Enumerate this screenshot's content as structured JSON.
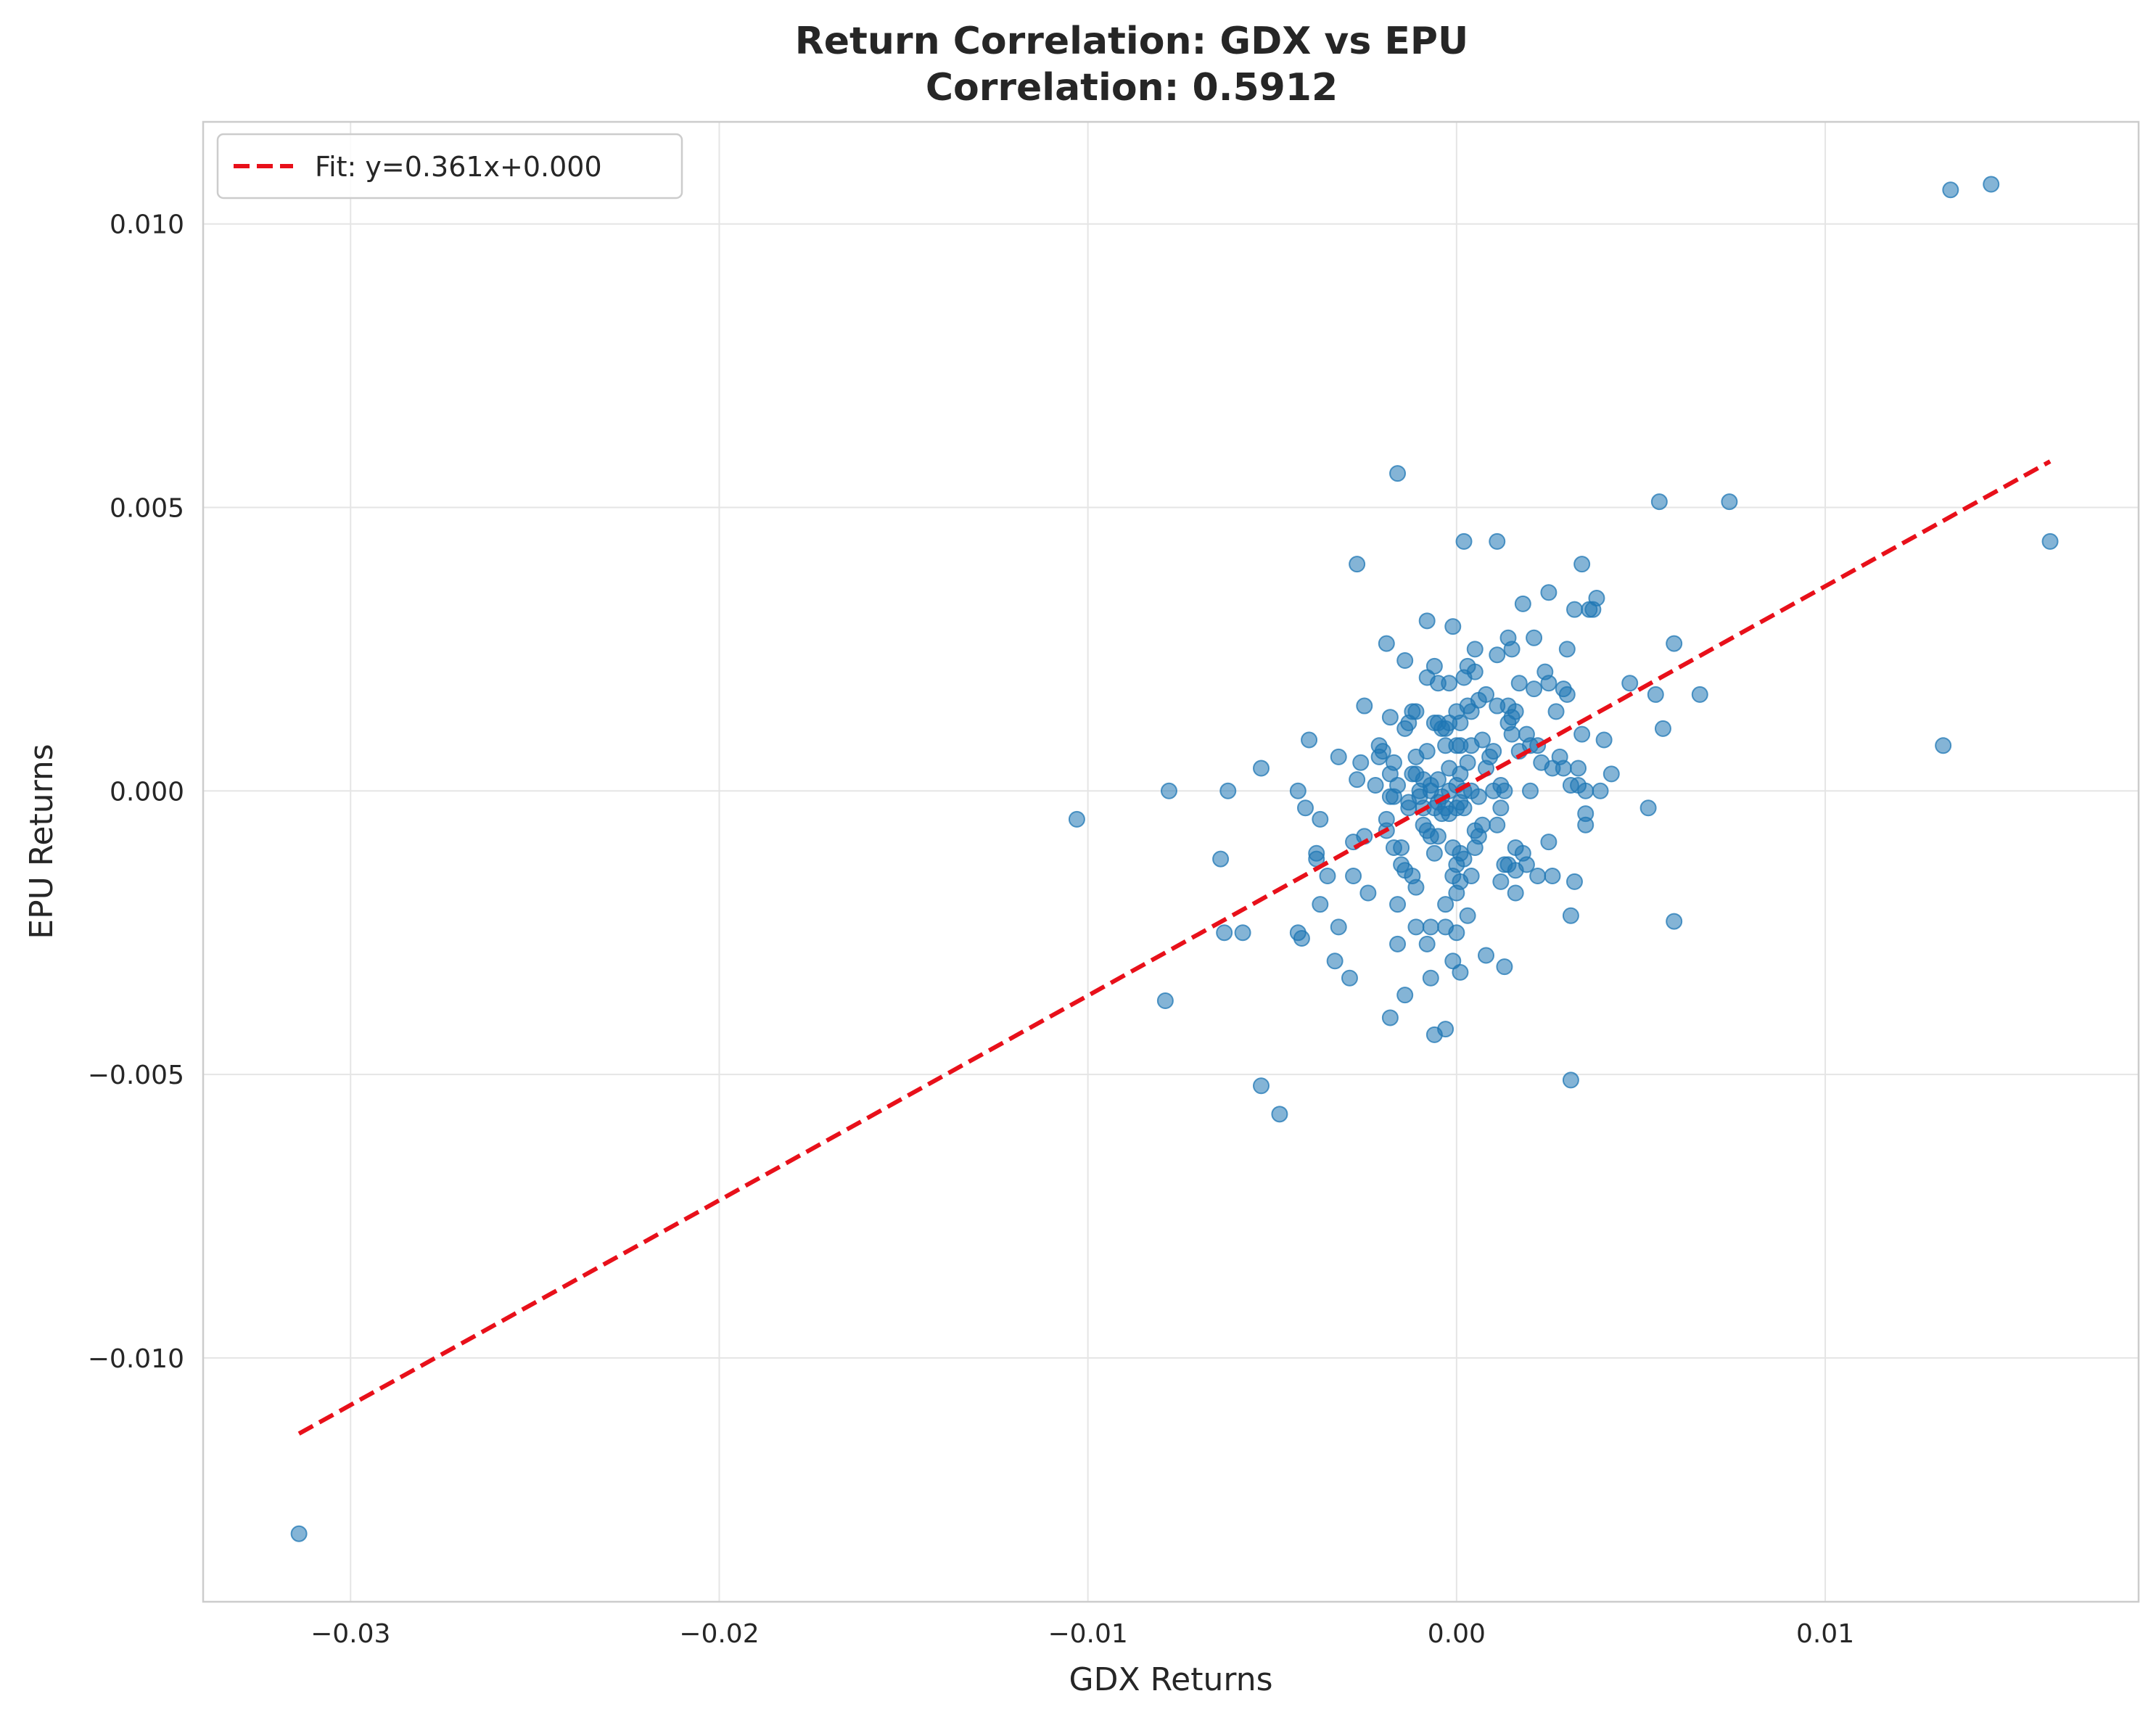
{
  "chart_data": {
    "type": "scatter",
    "title": "Return Correlation: GDX vs EPU",
    "subtitle": "Correlation: 0.5912",
    "xlabel": "GDX Returns",
    "ylabel": "EPU Returns",
    "xlim": [
      -0.034,
      0.0185
    ],
    "ylim": [
      -0.0143,
      0.0118
    ],
    "xticks": [
      -0.03,
      -0.02,
      -0.01,
      0.0,
      0.01
    ],
    "xtick_labels": [
      "−0.03",
      "−0.02",
      "−0.01",
      "0.00",
      "0.01"
    ],
    "yticks": [
      -0.01,
      -0.005,
      0.0,
      0.005,
      0.01
    ],
    "ytick_labels": [
      "−0.010",
      "−0.005",
      "0.000",
      "0.005",
      "0.010"
    ],
    "grid": true,
    "legend_position": "top-left",
    "colors": {
      "points": "#1f77b4",
      "fit": "#e8101a"
    },
    "fit_line": {
      "label": "Fit: y=0.361x+0.000",
      "slope": 0.361,
      "intercept": 0.0,
      "x_range": [
        -0.0314,
        0.0161
      ],
      "style": "dashed"
    },
    "points": [
      [
        -0.0314,
        -0.0131
      ],
      [
        -0.0103,
        -0.0005
      ],
      [
        -0.0078,
        0.0
      ],
      [
        -0.0079,
        -0.0037
      ],
      [
        -0.0064,
        -0.0012
      ],
      [
        -0.0063,
        -0.0025
      ],
      [
        -0.0062,
        0.0
      ],
      [
        -0.0058,
        -0.0025
      ],
      [
        -0.0053,
        0.0004
      ],
      [
        -0.0053,
        -0.0052
      ],
      [
        -0.0048,
        -0.0057
      ],
      [
        -0.0043,
        0.0
      ],
      [
        -0.0043,
        -0.0025
      ],
      [
        -0.0042,
        -0.0026
      ],
      [
        -0.0041,
        -0.0003
      ],
      [
        -0.004,
        0.0009
      ],
      [
        -0.0038,
        -0.0011
      ],
      [
        -0.0038,
        -0.0012
      ],
      [
        -0.0037,
        -0.0005
      ],
      [
        -0.0037,
        -0.002
      ],
      [
        -0.0035,
        -0.0015
      ],
      [
        -0.0033,
        -0.003
      ],
      [
        -0.0032,
        0.0006
      ],
      [
        -0.0032,
        -0.0024
      ],
      [
        -0.0029,
        -0.0033
      ],
      [
        -0.0028,
        -0.0009
      ],
      [
        -0.0028,
        -0.0015
      ],
      [
        -0.0027,
        0.0002
      ],
      [
        -0.0027,
        0.004
      ],
      [
        -0.0026,
        0.0005
      ],
      [
        -0.0025,
        0.0015
      ],
      [
        -0.0025,
        -0.0008
      ],
      [
        -0.0024,
        -0.0018
      ],
      [
        -0.0022,
        0.0001
      ],
      [
        -0.0021,
        0.0006
      ],
      [
        -0.0021,
        0.0008
      ],
      [
        -0.002,
        0.0007
      ],
      [
        -0.0019,
        0.0026
      ],
      [
        -0.0019,
        -0.0005
      ],
      [
        -0.0019,
        -0.0007
      ],
      [
        -0.0018,
        0.0003
      ],
      [
        -0.0018,
        0.0013
      ],
      [
        -0.0018,
        -0.0001
      ],
      [
        -0.0018,
        -0.004
      ],
      [
        -0.0017,
        0.0005
      ],
      [
        -0.0017,
        -0.0001
      ],
      [
        -0.0017,
        -0.001
      ],
      [
        -0.0016,
        0.0056
      ],
      [
        -0.0016,
        0.0001
      ],
      [
        -0.0016,
        -0.002
      ],
      [
        -0.0016,
        -0.0027
      ],
      [
        -0.0015,
        -0.001
      ],
      [
        -0.0015,
        -0.0013
      ],
      [
        -0.0014,
        0.0011
      ],
      [
        -0.0014,
        -0.0014
      ],
      [
        -0.0014,
        0.0023
      ],
      [
        -0.0014,
        -0.0036
      ],
      [
        -0.0013,
        0.0012
      ],
      [
        -0.0013,
        -0.0003
      ],
      [
        -0.0013,
        -0.0002
      ],
      [
        -0.0012,
        0.0014
      ],
      [
        -0.0012,
        0.0003
      ],
      [
        -0.0012,
        -0.0015
      ],
      [
        -0.0011,
        0.0003
      ],
      [
        -0.0011,
        -0.0017
      ],
      [
        -0.0011,
        0.0006
      ],
      [
        -0.0011,
        0.0014
      ],
      [
        -0.0011,
        -0.0024
      ],
      [
        -0.001,
        0.0
      ],
      [
        -0.001,
        -0.0001
      ],
      [
        -0.0009,
        -0.0003
      ],
      [
        -0.0009,
        -0.0006
      ],
      [
        -0.0009,
        0.0002
      ],
      [
        -0.0008,
        0.002
      ],
      [
        -0.0008,
        0.003
      ],
      [
        -0.0008,
        0.0007
      ],
      [
        -0.0008,
        -0.0007
      ],
      [
        -0.0008,
        -0.0027
      ],
      [
        -0.0007,
        0.0001
      ],
      [
        -0.0007,
        0.0
      ],
      [
        -0.0007,
        -0.0008
      ],
      [
        -0.0007,
        -0.0024
      ],
      [
        -0.0007,
        -0.0033
      ],
      [
        -0.0006,
        0.0012
      ],
      [
        -0.0006,
        0.0022
      ],
      [
        -0.0006,
        -0.0003
      ],
      [
        -0.0006,
        -0.0011
      ],
      [
        -0.0006,
        -0.0043
      ],
      [
        -0.0005,
        0.0012
      ],
      [
        -0.0005,
        0.0019
      ],
      [
        -0.0005,
        0.0002
      ],
      [
        -0.0005,
        -0.0002
      ],
      [
        -0.0005,
        -0.0008
      ],
      [
        -0.0004,
        0.0011
      ],
      [
        -0.0004,
        -0.0001
      ],
      [
        -0.0004,
        -0.0004
      ],
      [
        -0.0003,
        0.0008
      ],
      [
        -0.0003,
        0.0011
      ],
      [
        -0.0003,
        -0.0003
      ],
      [
        -0.0003,
        -0.002
      ],
      [
        -0.0003,
        -0.0042
      ],
      [
        -0.0003,
        -0.0024
      ],
      [
        -0.0002,
        0.0019
      ],
      [
        -0.0002,
        0.0012
      ],
      [
        -0.0002,
        0.0004
      ],
      [
        -0.0002,
        0.0
      ],
      [
        -0.0002,
        -0.0004
      ],
      [
        -0.0001,
        0.0029
      ],
      [
        -0.0001,
        -0.0015
      ],
      [
        -0.0001,
        -0.001
      ],
      [
        -0.0001,
        -0.003
      ],
      [
        0.0,
        0.0014
      ],
      [
        0.0,
        0.0008
      ],
      [
        0.0,
        0.0001
      ],
      [
        0.0,
        -0.0003
      ],
      [
        0.0,
        -0.0013
      ],
      [
        0.0,
        -0.0018
      ],
      [
        0.0,
        -0.0025
      ],
      [
        0.0001,
        0.0012
      ],
      [
        0.0001,
        0.0008
      ],
      [
        0.0001,
        0.0003
      ],
      [
        0.0001,
        -0.0002
      ],
      [
        0.0001,
        -0.0011
      ],
      [
        0.0001,
        -0.0016
      ],
      [
        0.0001,
        -0.0032
      ],
      [
        0.0002,
        0.0044
      ],
      [
        0.0002,
        0.002
      ],
      [
        0.0002,
        0.0
      ],
      [
        0.0002,
        -0.0003
      ],
      [
        0.0002,
        -0.0012
      ],
      [
        0.0003,
        0.0022
      ],
      [
        0.0003,
        0.0015
      ],
      [
        0.0003,
        0.0005
      ],
      [
        0.0003,
        -0.0022
      ],
      [
        0.0004,
        0.0014
      ],
      [
        0.0004,
        0.0008
      ],
      [
        0.0004,
        0.0
      ],
      [
        0.0004,
        -0.0015
      ],
      [
        0.0005,
        0.0025
      ],
      [
        0.0005,
        0.0021
      ],
      [
        0.0005,
        -0.0007
      ],
      [
        0.0005,
        -0.001
      ],
      [
        0.0006,
        0.0016
      ],
      [
        0.0006,
        -0.0001
      ],
      [
        0.0006,
        -0.0008
      ],
      [
        0.0007,
        0.0009
      ],
      [
        0.0007,
        -0.0006
      ],
      [
        0.0008,
        0.0017
      ],
      [
        0.0008,
        0.0004
      ],
      [
        0.0008,
        -0.0029
      ],
      [
        0.0009,
        0.0006
      ],
      [
        0.001,
        0.0007
      ],
      [
        0.001,
        0.0
      ],
      [
        0.0011,
        0.0044
      ],
      [
        0.0011,
        0.0024
      ],
      [
        0.0011,
        0.0015
      ],
      [
        0.0011,
        -0.0006
      ],
      [
        0.0012,
        -0.0016
      ],
      [
        0.0012,
        -0.0003
      ],
      [
        0.0012,
        0.0001
      ],
      [
        0.0013,
        0.0
      ],
      [
        0.0013,
        -0.0013
      ],
      [
        0.0013,
        -0.0031
      ],
      [
        0.0014,
        0.0027
      ],
      [
        0.0014,
        0.0015
      ],
      [
        0.0014,
        0.0012
      ],
      [
        0.0014,
        -0.0013
      ],
      [
        0.0015,
        0.0013
      ],
      [
        0.0015,
        0.001
      ],
      [
        0.0015,
        0.0025
      ],
      [
        0.0016,
        -0.001
      ],
      [
        0.0016,
        -0.0014
      ],
      [
        0.0016,
        -0.0018
      ],
      [
        0.0016,
        0.0014
      ],
      [
        0.0017,
        0.0019
      ],
      [
        0.0017,
        0.0007
      ],
      [
        0.0018,
        0.0033
      ],
      [
        0.0018,
        -0.0011
      ],
      [
        0.0019,
        0.001
      ],
      [
        0.0019,
        -0.0013
      ],
      [
        0.002,
        0.0008
      ],
      [
        0.002,
        0.0
      ],
      [
        0.0021,
        0.0018
      ],
      [
        0.0021,
        0.0027
      ],
      [
        0.0022,
        0.0008
      ],
      [
        0.0022,
        -0.0015
      ],
      [
        0.0023,
        0.0005
      ],
      [
        0.0024,
        0.0021
      ],
      [
        0.0025,
        0.0035
      ],
      [
        0.0025,
        0.0019
      ],
      [
        0.0025,
        -0.0009
      ],
      [
        0.0026,
        0.0004
      ],
      [
        0.0026,
        -0.0015
      ],
      [
        0.0027,
        0.0014
      ],
      [
        0.0028,
        0.0006
      ],
      [
        0.0029,
        0.0018
      ],
      [
        0.0029,
        0.0004
      ],
      [
        0.003,
        0.0025
      ],
      [
        0.003,
        0.0017
      ],
      [
        0.0031,
        -0.0022
      ],
      [
        0.0031,
        0.0001
      ],
      [
        0.0031,
        -0.0051
      ],
      [
        0.0032,
        0.0032
      ],
      [
        0.0032,
        -0.0016
      ],
      [
        0.0033,
        0.0004
      ],
      [
        0.0033,
        0.0001
      ],
      [
        0.0034,
        0.004
      ],
      [
        0.0034,
        0.001
      ],
      [
        0.0035,
        0.0
      ],
      [
        0.0035,
        -0.0004
      ],
      [
        0.0035,
        -0.0006
      ],
      [
        0.0036,
        0.0032
      ],
      [
        0.0037,
        0.0032
      ],
      [
        0.0038,
        0.0034
      ],
      [
        0.0039,
        0.0
      ],
      [
        0.004,
        0.0009
      ],
      [
        0.0042,
        0.0003
      ],
      [
        0.0047,
        0.0019
      ],
      [
        0.0052,
        -0.0003
      ],
      [
        0.0054,
        0.0017
      ],
      [
        0.0055,
        0.0051
      ],
      [
        0.0056,
        0.0011
      ],
      [
        0.0059,
        0.0026
      ],
      [
        0.0059,
        -0.0023
      ],
      [
        0.0066,
        0.0017
      ],
      [
        0.0074,
        0.0051
      ],
      [
        0.0132,
        0.0008
      ],
      [
        0.0134,
        0.0106
      ],
      [
        0.0145,
        0.0107
      ],
      [
        0.0161,
        0.0044
      ]
    ]
  }
}
